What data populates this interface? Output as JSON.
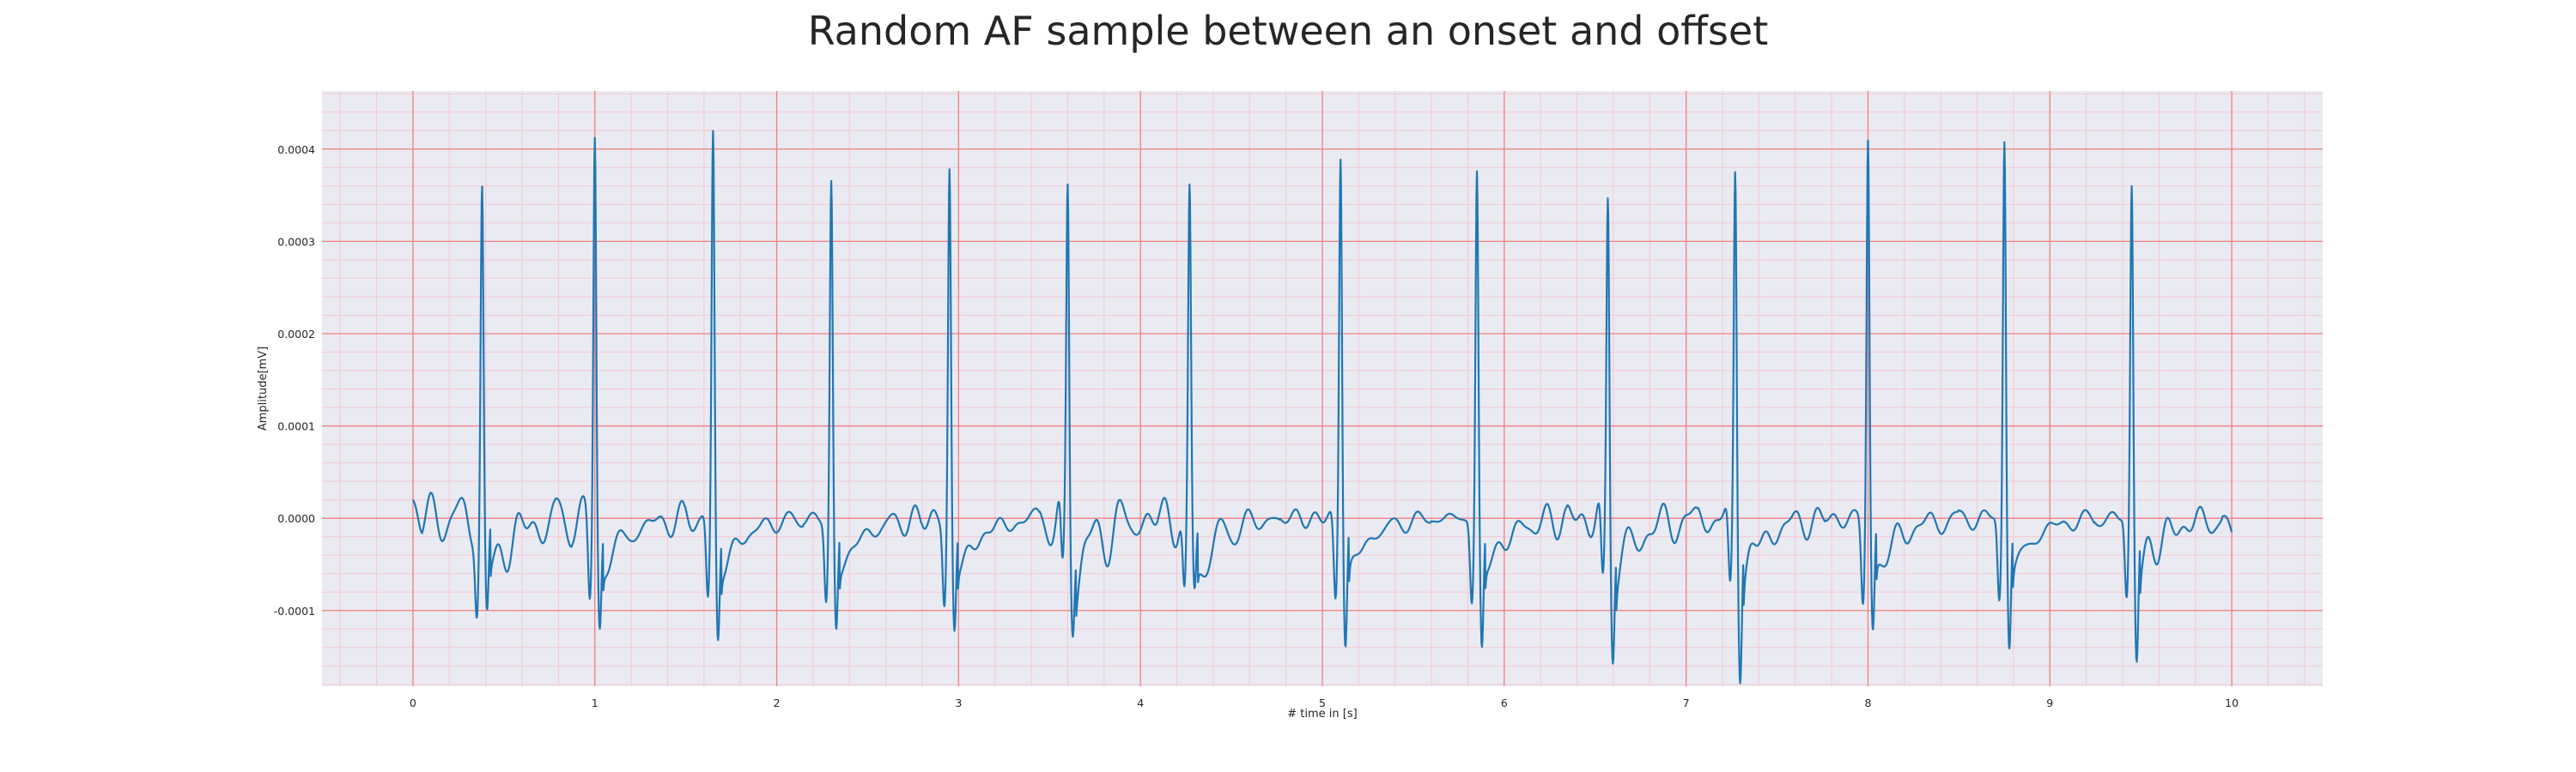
{
  "chart_data": {
    "type": "line",
    "title": "Random AF sample between an onset and offset",
    "xlabel": "# time in [s]",
    "ylabel": "Amplitude[mV]",
    "xlim": [
      -0.5,
      10.5
    ],
    "ylim": [
      -0.000182,
      0.000463
    ],
    "x_ticks": [
      0,
      1,
      2,
      3,
      4,
      5,
      6,
      7,
      8,
      9,
      10
    ],
    "x_tick_labels": [
      "0",
      "1",
      "2",
      "3",
      "4",
      "5",
      "6",
      "7",
      "8",
      "9",
      "10"
    ],
    "y_ticks": [
      -0.0001,
      0.0,
      0.0001,
      0.0002,
      0.0003,
      0.0004
    ],
    "y_tick_labels": [
      "-0.0001",
      "0.0000",
      "0.0001",
      "0.0002",
      "0.0003",
      "0.0004"
    ],
    "grid": true,
    "minor_grid": true,
    "background_color": "#eaeaf2",
    "major_grid_color": "#f08080",
    "minor_grid_color": "#f6c7d2",
    "series": [
      {
        "color": "#1f77b4",
        "baseline_start": 2e-05,
        "beats": [
          {
            "t": 0.38,
            "peak": 0.000363,
            "s_min": -0.00011
          },
          {
            "t": 1.0,
            "peak": 0.000431,
            "s_min": -0.000118
          },
          {
            "t": 1.65,
            "peak": 0.000427,
            "s_min": -0.000131
          },
          {
            "t": 2.3,
            "peak": 0.000373,
            "s_min": -0.000121
          },
          {
            "t": 2.95,
            "peak": 0.000387,
            "s_min": -0.000123
          },
          {
            "t": 3.6,
            "peak": 0.000363,
            "s_min": -9e-05
          },
          {
            "t": 4.27,
            "peak": 0.000355,
            "s_min": -8.5e-05
          },
          {
            "t": 5.1,
            "peak": 0.000413,
            "s_min": -0.000135
          },
          {
            "t": 5.85,
            "peak": 0.000387,
            "s_min": -0.000143
          },
          {
            "t": 6.57,
            "peak": 0.000362,
            "s_min": -0.000128
          },
          {
            "t": 7.27,
            "peak": 0.000393,
            "s_min": -0.000152
          },
          {
            "t": 8.0,
            "peak": 0.000427,
            "s_min": -0.000125
          },
          {
            "t": 8.75,
            "peak": 0.000426,
            "s_min": -0.000135
          },
          {
            "t": 9.45,
            "peak": 0.000375,
            "s_min": -0.000142
          }
        ],
        "fibrillation_amplitude": 2.8e-05,
        "end_value": -1.5e-05,
        "t_start": 0,
        "t_end": 10
      }
    ]
  }
}
